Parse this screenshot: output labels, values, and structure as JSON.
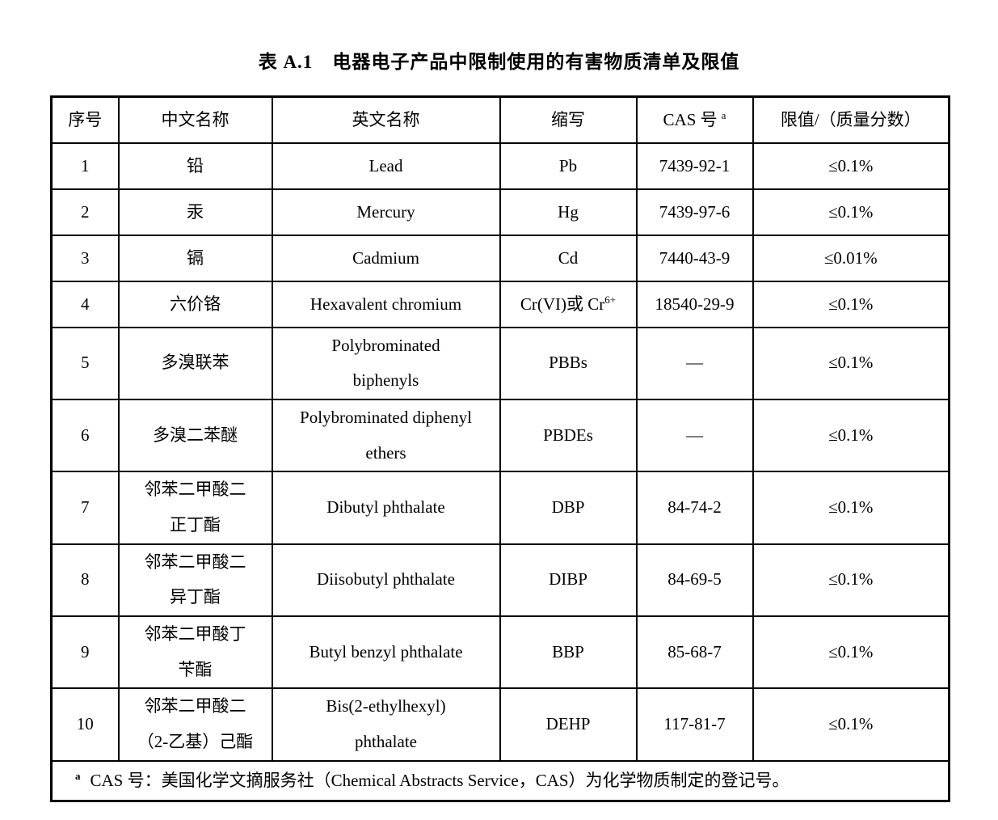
{
  "title": {
    "label": "表 A.1",
    "text": "电器电子产品中限制使用的有害物质清单及限值"
  },
  "table": {
    "headers": {
      "no": "序号",
      "cn": "中文名称",
      "en": "英文名称",
      "abbr": "缩写",
      "cas": "CAS 号",
      "cas_sup": "a",
      "limit": "限值/（质量分数）"
    },
    "rows": [
      {
        "no": "1",
        "cn": "铅",
        "en": "Lead",
        "abbr": "Pb",
        "cas": "7439-92-1",
        "limit": "≤0.1%"
      },
      {
        "no": "2",
        "cn": "汞",
        "en": "Mercury",
        "abbr": "Hg",
        "cas": "7439-97-6",
        "limit": "≤0.1%"
      },
      {
        "no": "3",
        "cn": "镉",
        "en": "Cadmium",
        "abbr": "Cd",
        "cas": "7440-43-9",
        "limit": "≤0.01%"
      },
      {
        "no": "4",
        "cn": "六价铬",
        "en": "Hexavalent chromium",
        "abbr": "Cr(VI)或 Cr",
        "abbr_sup": "6+",
        "cas": "18540-29-9",
        "limit": "≤0.1%"
      },
      {
        "no": "5",
        "cn": "多溴联苯",
        "en": "Polybrominated\nbiphenyls",
        "abbr": "PBBs",
        "cas": "—",
        "limit": "≤0.1%"
      },
      {
        "no": "6",
        "cn": "多溴二苯醚",
        "en": "Polybrominated diphenyl\nethers",
        "abbr": "PBDEs",
        "cas": "—",
        "limit": "≤0.1%"
      },
      {
        "no": "7",
        "cn": "邻苯二甲酸二\n正丁酯",
        "en": "Dibutyl phthalate",
        "abbr": "DBP",
        "cas": "84-74-2",
        "limit": "≤0.1%"
      },
      {
        "no": "8",
        "cn": "邻苯二甲酸二\n异丁酯",
        "en": "Diisobutyl phthalate",
        "abbr": "DIBP",
        "cas": "84-69-5",
        "limit": "≤0.1%"
      },
      {
        "no": "9",
        "cn": "邻苯二甲酸丁\n苄酯",
        "en": "Butyl benzyl phthalate",
        "abbr": "BBP",
        "cas": "85-68-7",
        "limit": "≤0.1%"
      },
      {
        "no": "10",
        "cn": "邻苯二甲酸二\n（2-乙基）己酯",
        "en": "Bis(2-ethylhexyl)\nphthalate",
        "abbr": "DEHP",
        "cas": "117-81-7",
        "limit": "≤0.1%"
      }
    ],
    "footnote": {
      "sup": "a",
      "text": "CAS 号：美国化学文摘服务社（Chemical Abstracts Service，CAS）为化学物质制定的登记号。"
    }
  }
}
